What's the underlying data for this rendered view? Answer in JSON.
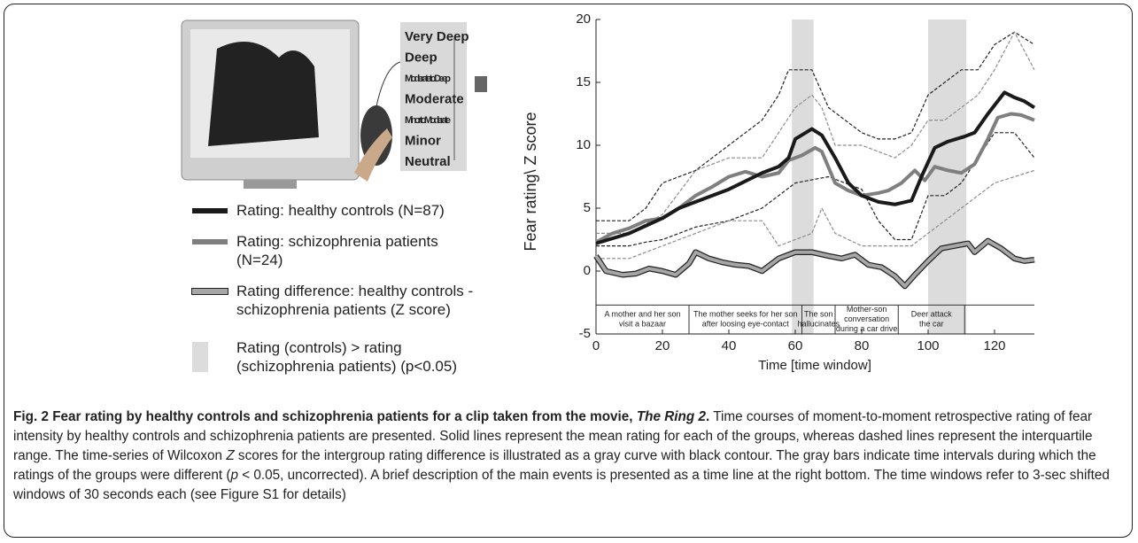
{
  "chart_data": {
    "type": "line",
    "y_label": "Fear rating\\ Z score",
    "x_label": "Time [time window]",
    "xlim": [
      0,
      132
    ],
    "ylim": [
      -5,
      20
    ],
    "xticks": [
      0,
      20,
      40,
      60,
      80,
      100,
      120
    ],
    "yticks": [
      -5,
      0,
      5,
      10,
      15,
      20
    ],
    "bands": [
      [
        59,
        65.5
      ],
      [
        100,
        111.5
      ]
    ],
    "band_color": "#dcdcdc",
    "band_label": "Rating (controls) > rating (schizophrenia patients) (p<0.05)",
    "events_top": -2.7,
    "events": [
      {
        "start": 0,
        "end": 28,
        "label": [
          "A mother and her son",
          "visit a bazaar"
        ]
      },
      {
        "start": 28,
        "end": 62,
        "label": [
          "The mother seeks for her son",
          "after loosing eye-contact"
        ]
      },
      {
        "start": 62,
        "end": 72,
        "label": [
          "The son",
          "hallucinates"
        ]
      },
      {
        "start": 72,
        "end": 91,
        "label": [
          "Mother-son",
          "conversation",
          "during a car drive"
        ]
      },
      {
        "start": 91,
        "end": 111,
        "label": [
          "Deer attack",
          "the car"
        ]
      }
    ],
    "series": [
      {
        "color": "#222222",
        "width": 1.2,
        "dash": true,
        "x": [
          0,
          10,
          15,
          20,
          30,
          40,
          50,
          55,
          58,
          65,
          70,
          75,
          80,
          85,
          90,
          95,
          100,
          105,
          110,
          115,
          120,
          126,
          132
        ],
        "values": [
          4,
          4,
          5,
          7,
          8,
          10,
          12,
          14,
          16,
          16,
          13,
          12,
          11,
          10.5,
          10.5,
          11,
          14,
          15,
          16,
          16,
          18,
          19,
          18
        ]
      },
      {
        "color": "#222222",
        "width": 1.2,
        "dash": true,
        "x": [
          0,
          10,
          15,
          20,
          30,
          40,
          50,
          55,
          60,
          70,
          75,
          80,
          85,
          90,
          95,
          100,
          105,
          110,
          115,
          120,
          126,
          132
        ],
        "values": [
          2,
          2,
          2.3,
          2.5,
          3.5,
          4,
          5,
          6,
          7,
          7.5,
          7,
          6.5,
          4,
          2.5,
          2.5,
          6,
          6,
          7,
          9,
          11,
          11,
          9
        ]
      },
      {
        "color": "#8c8c8c",
        "width": 1.2,
        "dash": true,
        "x": [
          0,
          10,
          20,
          30,
          40,
          50,
          55,
          60,
          65,
          68,
          72,
          80,
          90,
          95,
          100,
          105,
          110,
          115,
          120,
          126,
          132
        ],
        "values": [
          3,
          3,
          4.5,
          8,
          9,
          9,
          11,
          13,
          14,
          13,
          10,
          10,
          9,
          10,
          12,
          12,
          13,
          14,
          16,
          19,
          16
        ]
      },
      {
        "color": "#8c8c8c",
        "width": 1.2,
        "dash": true,
        "x": [
          0,
          10,
          20,
          30,
          40,
          50,
          55,
          60,
          65,
          68,
          72,
          80,
          90,
          95,
          100,
          105,
          110,
          115,
          120,
          126,
          132
        ],
        "values": [
          1,
          1,
          2,
          3,
          4,
          4,
          2,
          2.5,
          3,
          5,
          3,
          2,
          2,
          2,
          3,
          4,
          5,
          6,
          7,
          7.5,
          8
        ]
      },
      {
        "name": "Rating difference: healthy controls -schizophrenia patients (Z score)",
        "color": "#a6a6a6",
        "outline": "#222222",
        "width": 4,
        "x": [
          0,
          3,
          8,
          12,
          16,
          20,
          24,
          28,
          30,
          34,
          38,
          42,
          46,
          50,
          55,
          60,
          65,
          70,
          74,
          78,
          82,
          86,
          90,
          93,
          96,
          100,
          104,
          108,
          112,
          114,
          118,
          122,
          126,
          129,
          132
        ],
        "values": [
          1.2,
          0,
          -0.3,
          -0.2,
          0.2,
          0,
          -0.3,
          0.6,
          1.5,
          1,
          0.7,
          0.5,
          0.4,
          0,
          1,
          1.5,
          1.5,
          1.2,
          1,
          1.3,
          0.5,
          0.3,
          -0.4,
          -1.2,
          -0.3,
          0.8,
          1.8,
          2,
          2.2,
          1.5,
          2.4,
          1.8,
          1,
          0.8,
          0.9
        ]
      },
      {
        "name": "Rating: schizophrenia patients (N=24)",
        "color": "#7f7f7f",
        "width": 4,
        "x": [
          0,
          5,
          10,
          15,
          20,
          25,
          30,
          35,
          40,
          45,
          50,
          55,
          58,
          62,
          66,
          68,
          72,
          76,
          80,
          85,
          88,
          92,
          96,
          99,
          102,
          106,
          110,
          114,
          118,
          121,
          125,
          128,
          132
        ],
        "values": [
          2.3,
          3,
          3.4,
          4,
          4.2,
          5,
          6,
          6.7,
          7.5,
          7.9,
          7.5,
          7.8,
          8.8,
          9.2,
          9.8,
          9.5,
          7,
          6.4,
          6,
          6.2,
          6.4,
          7,
          8,
          7.2,
          8.3,
          8,
          7.8,
          8.5,
          10.5,
          12.2,
          12.5,
          12.4,
          12
        ]
      },
      {
        "name": "Rating: healthy controls (N=87)",
        "color": "#1a1a1a",
        "width": 4,
        "x": [
          0,
          10,
          20,
          25,
          30,
          40,
          50,
          55,
          58,
          60,
          65,
          68,
          72,
          76,
          80,
          85,
          90,
          95,
          98,
          102,
          106,
          111,
          114,
          118,
          123,
          126,
          129,
          132
        ],
        "values": [
          2.2,
          3,
          4.2,
          5,
          5.5,
          6.5,
          7.8,
          8.3,
          9,
          10.5,
          11.3,
          10.8,
          9,
          7,
          6,
          5.5,
          5.3,
          5.6,
          7.5,
          9.8,
          10.3,
          10.7,
          11,
          12.5,
          14.2,
          13.8,
          13.5,
          13
        ]
      }
    ]
  },
  "illustration": {
    "scale": [
      "Very Deep",
      "Deep",
      "Moderate to Deep",
      "Moderate",
      "Minor to Moderate",
      "Minor",
      "Neutral"
    ]
  },
  "caption": {
    "title": [
      "Fig. 2 Fear rating by healthy controls and schizophrenia patients for a clip taken from the movie, ",
      "The Ring 2",
      "."
    ],
    "body": [
      " Time courses of moment-to-moment retrospective rating of fear intensity by healthy controls and schizophrenia patients are presented. Solid lines represent the mean rating for each of the groups, whereas dashed lines represent the interquartile range. The time-series of Wilcoxon ",
      "Z",
      " scores for the intergroup rating difference is illustrated as a gray curve with black contour. The gray bars indicate time intervals during which the ratings of the groups were different (",
      "p",
      " < 0.05, uncorrected). A brief description of the main events is presented as a time line at the right bottom. The time windows refer to 3-sec shifted windows of 30 seconds each (see Figure S1 for details)"
    ]
  }
}
